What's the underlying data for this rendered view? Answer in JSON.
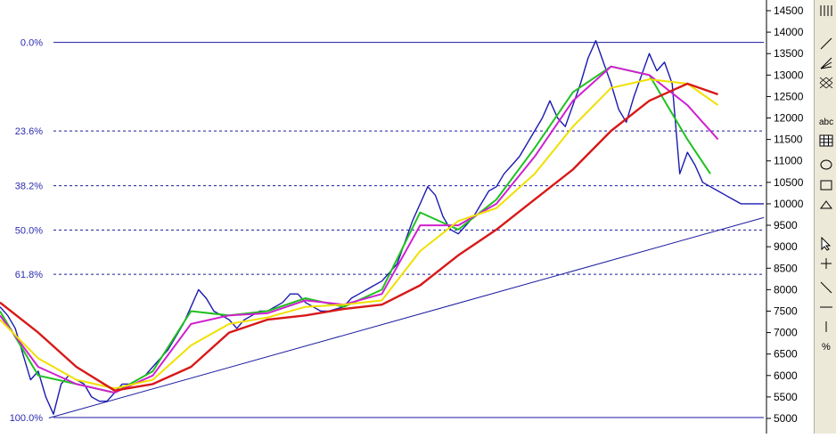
{
  "chart_data": {
    "type": "line",
    "title": "",
    "ylim": [
      4900,
      14700
    ],
    "y_axis_position": "right",
    "y_ticks": [
      5000,
      5500,
      6000,
      6500,
      7000,
      7500,
      8000,
      8500,
      9000,
      9500,
      10000,
      10500,
      11000,
      11500,
      12000,
      12500,
      13000,
      13500,
      14000,
      14500
    ],
    "y_tick_labels": [
      "5000",
      "5500",
      "6000",
      "6500",
      "7000",
      "7500",
      "8000",
      "8500",
      "9000",
      "9500",
      "10000",
      "10500",
      "11000",
      "11500",
      "12000",
      "12500",
      "13000",
      "13500",
      "14000",
      "14500"
    ],
    "x_range": [
      0,
      100
    ],
    "fibonacci": {
      "high": 13760,
      "low": 5020,
      "levels": [
        {
          "ratio": 0.0,
          "label": "0.0%",
          "style": "solid"
        },
        {
          "ratio": 0.236,
          "label": "23.6%",
          "style": "dashed"
        },
        {
          "ratio": 0.382,
          "label": "38.2%",
          "style": "dashed"
        },
        {
          "ratio": 0.5,
          "label": "50.0%",
          "style": "dashed"
        },
        {
          "ratio": 0.618,
          "label": "61.8%",
          "style": "dashed"
        },
        {
          "ratio": 1.0,
          "label": "100.0%",
          "style": "solid"
        }
      ]
    },
    "trendline": {
      "x": [
        6.4,
        100
      ],
      "y": [
        5010,
        9680
      ]
    },
    "series": [
      {
        "color": "#1a1ab0",
        "x": [
          0,
          1,
          2,
          3,
          4,
          5,
          6,
          7,
          8,
          9,
          10,
          11,
          12,
          13,
          14,
          15,
          16,
          17,
          18,
          19,
          20,
          21,
          22,
          23,
          24,
          25,
          26,
          27,
          28,
          29,
          30,
          31,
          32,
          33,
          34,
          35,
          36,
          37,
          38,
          39,
          40,
          41,
          42,
          43,
          44,
          45,
          46,
          47,
          48,
          49,
          50,
          51,
          52,
          53,
          54,
          55,
          56,
          57,
          58,
          59,
          60,
          61,
          62,
          63,
          64,
          65,
          66,
          67,
          68,
          69,
          70,
          71,
          72,
          73,
          74,
          75,
          76,
          77,
          78,
          79,
          80,
          81,
          82,
          83,
          84,
          85,
          86,
          87,
          88,
          89,
          90,
          91,
          92,
          93,
          94,
          95,
          96,
          97,
          98,
          99,
          100
        ],
        "y": [
          7600,
          7400,
          7100,
          6500,
          5900,
          6100,
          5500,
          5100,
          5800,
          6000,
          5900,
          5800,
          5500,
          5400,
          5400,
          5600,
          5800,
          5800,
          5900,
          6000,
          6200,
          6400,
          6600,
          6900,
          7200,
          7600,
          8000,
          7800,
          7500,
          7400,
          7300,
          7100,
          7300,
          7400,
          7500,
          7500,
          7600,
          7700,
          7900,
          7900,
          7700,
          7600,
          7500,
          7500,
          7550,
          7600,
          7800,
          7900,
          8000,
          8100,
          8200,
          8400,
          8600,
          9100,
          9600,
          10000,
          10400,
          10200,
          9700,
          9400,
          9300,
          9500,
          9700,
          10000,
          10300,
          10400,
          10700,
          10900,
          11100,
          11400,
          11700,
          12000,
          12400,
          12000,
          11800,
          12300,
          12800,
          13400,
          13800,
          13300,
          12800,
          12200,
          11900,
          12500,
          13000,
          13500,
          13100,
          13300,
          12800,
          10700,
          11200,
          10900,
          10500,
          10400,
          10300,
          10200,
          10100,
          10000,
          10000,
          10000,
          10000
        ]
      },
      {
        "color": "#20c020",
        "x": [
          0,
          5,
          10,
          15,
          20,
          25,
          30,
          35,
          40,
          45,
          50,
          55,
          60,
          65,
          70,
          75,
          80,
          85,
          90,
          93
        ],
        "y": [
          7500,
          6000,
          5800,
          5600,
          6100,
          7500,
          7400,
          7500,
          7800,
          7600,
          8000,
          9800,
          9400,
          10100,
          11300,
          12600,
          13200,
          13000,
          11500,
          10700
        ]
      },
      {
        "color": "#d020d0",
        "x": [
          0,
          5,
          10,
          15,
          20,
          25,
          30,
          35,
          40,
          45,
          50,
          55,
          60,
          65,
          70,
          75,
          80,
          85,
          90,
          94
        ],
        "y": [
          7400,
          6200,
          5800,
          5600,
          6000,
          7200,
          7400,
          7450,
          7750,
          7650,
          7900,
          9500,
          9500,
          10000,
          11100,
          12400,
          13200,
          13000,
          12300,
          11500
        ]
      },
      {
        "color": "#f0e000",
        "x": [
          0,
          5,
          10,
          15,
          20,
          25,
          30,
          35,
          40,
          45,
          50,
          55,
          60,
          65,
          70,
          75,
          80,
          85,
          90,
          94
        ],
        "y": [
          7300,
          6400,
          5900,
          5700,
          5900,
          6700,
          7200,
          7350,
          7600,
          7650,
          7750,
          8900,
          9600,
          9900,
          10700,
          11800,
          12700,
          12900,
          12800,
          12300
        ]
      },
      {
        "color": "#d81818",
        "x": [
          0,
          5,
          10,
          15,
          20,
          25,
          30,
          35,
          40,
          45,
          50,
          55,
          60,
          65,
          70,
          75,
          80,
          85,
          90,
          94
        ],
        "y": [
          7700,
          7000,
          6200,
          5650,
          5800,
          6200,
          7000,
          7300,
          7400,
          7550,
          7650,
          8100,
          8800,
          9400,
          10100,
          10800,
          11700,
          12400,
          12800,
          12550
        ]
      }
    ]
  }
}
